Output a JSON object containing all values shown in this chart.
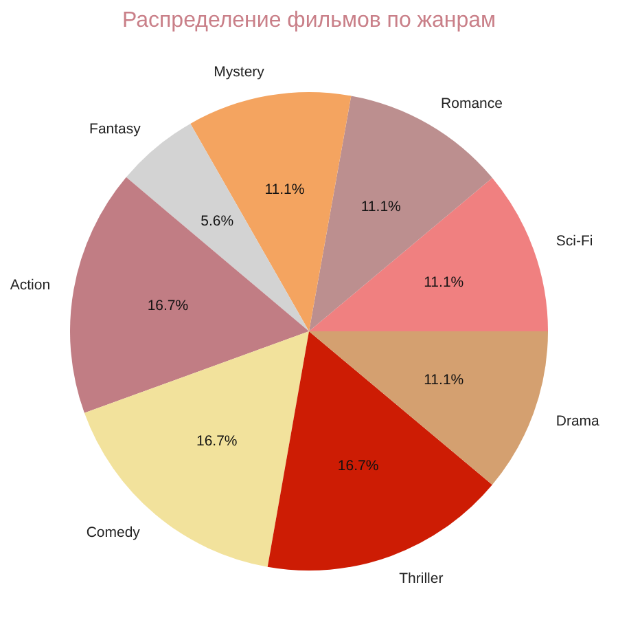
{
  "chart_data": {
    "type": "pie",
    "title": "Распределение фильмов по жанрам",
    "categories": [
      "Sci-Fi",
      "Romance",
      "Mystery",
      "Fantasy",
      "Action",
      "Comedy",
      "Thriller",
      "Drama"
    ],
    "values": [
      11.1,
      11.1,
      11.1,
      5.6,
      16.7,
      16.7,
      16.7,
      11.1
    ],
    "value_labels": [
      "11.1%",
      "11.1%",
      "11.1%",
      "5.6%",
      "16.7%",
      "16.7%",
      "16.7%",
      "11.1%"
    ],
    "colors": [
      "#f08080",
      "#bc8f8f",
      "#f4a460",
      "#d3d3d3",
      "#c17d84",
      "#f2e29c",
      "#cd1c04",
      "#d4a070"
    ]
  }
}
